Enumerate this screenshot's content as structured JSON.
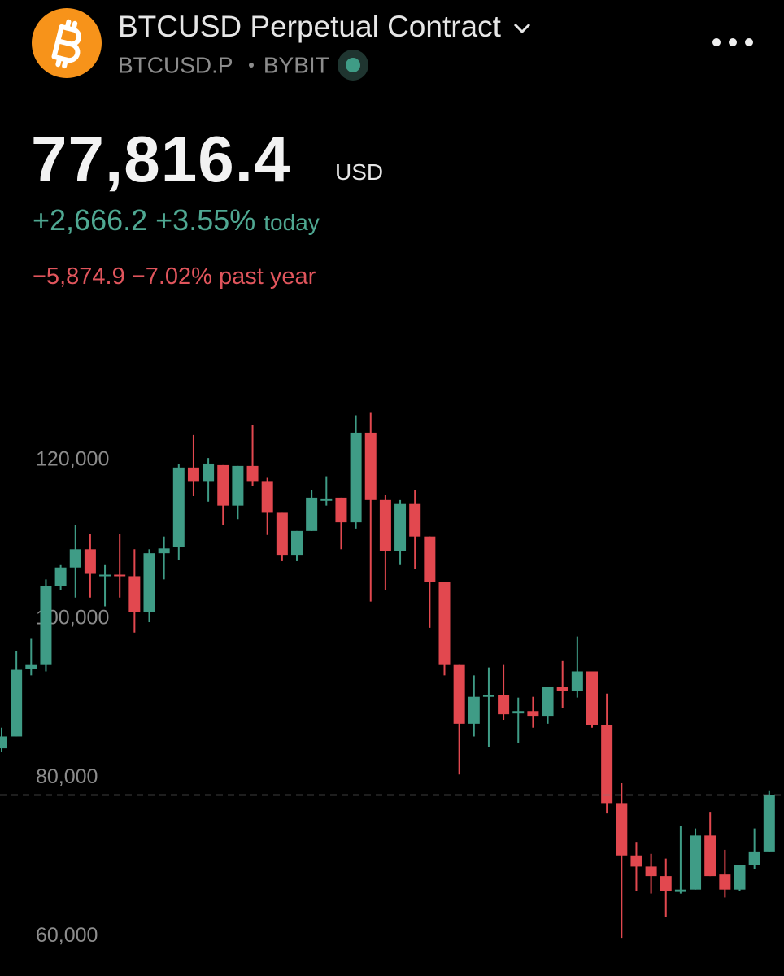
{
  "header": {
    "title": "BTCUSD Perpetual Contract",
    "symbol": "BTCUSD.P",
    "exchange": "BYBIT"
  },
  "quote": {
    "price": {
      "value": 77816.4,
      "label": "77,816.4"
    },
    "currency": "USD",
    "change": "+2,666.2",
    "change_percent": "+3.55%",
    "change_period": "today",
    "year_change": "−5,874.9",
    "year_change_percent": "−7.02%",
    "year_period": "past year"
  },
  "chart_data": {
    "type": "candlestick",
    "up_color": "#3f9c86",
    "down_color": "#e2484f",
    "ylim": [
      55000,
      140000
    ],
    "yticks": [
      {
        "value": 60000,
        "label": "60,000"
      },
      {
        "value": 80000,
        "label": "80,000"
      },
      {
        "value": 100000,
        "label": "100,000"
      },
      {
        "value": 120000,
        "label": "120,000"
      }
    ],
    "open": [
      83700,
      85200,
      93700,
      94200,
      104200,
      106500,
      108800,
      105400,
      105600,
      105400,
      100900,
      108300,
      109100,
      119100,
      117300,
      119400,
      114300,
      119300,
      117300,
      113400,
      108100,
      111100,
      114900,
      115300,
      112200,
      123500,
      115000,
      108600,
      114500,
      110400,
      104700,
      94200,
      86800,
      90200,
      90400,
      88100,
      88400,
      87800,
      91400,
      90900,
      93400,
      86600,
      76800,
      70200,
      68800,
      67600,
      65600,
      65900,
      72700,
      67800,
      65900,
      69000,
      70700
    ],
    "high": [
      86300,
      96000,
      97500,
      105000,
      106800,
      111900,
      110700,
      106800,
      110700,
      108800,
      108800,
      110400,
      119600,
      123200,
      120300,
      119400,
      119300,
      124500,
      117800,
      113400,
      111100,
      116300,
      118000,
      115300,
      125700,
      126000,
      115700,
      115000,
      116300,
      110400,
      104700,
      94200,
      92900,
      93900,
      94200,
      90100,
      90200,
      91400,
      94700,
      97800,
      93400,
      90600,
      79300,
      71900,
      70400,
      69800,
      73900,
      73600,
      75700,
      70900,
      69000,
      73600,
      78400
    ],
    "low": [
      83200,
      85200,
      92900,
      93400,
      103700,
      102700,
      102700,
      101600,
      102700,
      98300,
      99600,
      105000,
      107500,
      115500,
      114800,
      111900,
      112600,
      116800,
      110600,
      107300,
      107300,
      111100,
      114300,
      108800,
      111400,
      102200,
      103700,
      106800,
      106300,
      98900,
      92900,
      80400,
      85200,
      83900,
      87300,
      84400,
      86300,
      86800,
      88800,
      90100,
      86300,
      75500,
      59800,
      65700,
      65400,
      62400,
      65400,
      65900,
      67600,
      64900,
      65700,
      68500,
      70700
    ],
    "close": [
      85200,
      93600,
      94200,
      104200,
      106500,
      108800,
      105700,
      105600,
      105400,
      100900,
      108300,
      108900,
      119100,
      117300,
      119600,
      114300,
      119300,
      117300,
      113400,
      108100,
      111100,
      115300,
      115200,
      112200,
      123500,
      115000,
      108600,
      114500,
      110400,
      104700,
      94200,
      86800,
      90200,
      90400,
      88000,
      88400,
      87800,
      91400,
      90900,
      93400,
      86600,
      76800,
      70200,
      68800,
      67600,
      65700,
      65900,
      72700,
      67600,
      65900,
      69000,
      70700,
      77800
    ]
  }
}
